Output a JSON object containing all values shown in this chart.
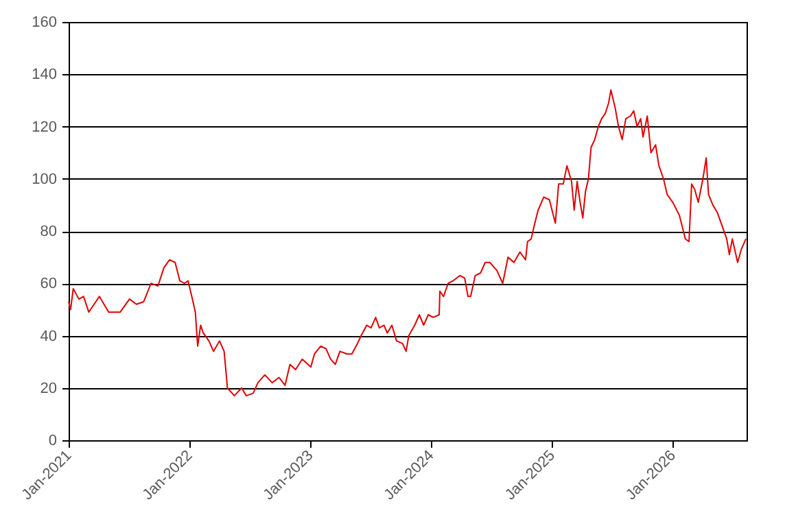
{
  "chart_data": {
    "type": "line",
    "x": [
      "2021-01-01",
      "2021-01-07",
      "2021-01-15",
      "2021-02-01",
      "2021-02-15",
      "2021-03-03",
      "2021-04-04",
      "2021-05-02",
      "2021-06-06",
      "2021-07-04",
      "2021-07-25",
      "2021-08-16",
      "2021-09-07",
      "2021-09-28",
      "2021-10-16",
      "2021-11-02",
      "2021-11-19",
      "2021-12-03",
      "2021-12-17",
      "2021-12-28",
      "2022-01-12",
      "2022-01-19",
      "2022-01-26",
      "2022-02-04",
      "2022-02-12",
      "2022-03-01",
      "2022-03-15",
      "2022-04-02",
      "2022-04-16",
      "2022-04-26",
      "2022-05-17",
      "2022-06-08",
      "2022-06-22",
      "2022-07-13",
      "2022-07-27",
      "2022-08-17",
      "2022-09-08",
      "2022-09-29",
      "2022-10-17",
      "2022-11-01",
      "2022-11-18",
      "2022-12-08",
      "2023-01-03",
      "2023-01-14",
      "2023-02-02",
      "2023-02-18",
      "2023-03-04",
      "2023-03-18",
      "2023-04-01",
      "2023-04-23",
      "2023-05-07",
      "2023-05-24",
      "2023-06-04",
      "2023-06-21",
      "2023-07-04",
      "2023-07-18",
      "2023-07-29",
      "2023-08-12",
      "2023-08-22",
      "2023-09-05",
      "2023-09-19",
      "2023-10-07",
      "2023-10-18",
      "2023-10-26",
      "2023-11-13",
      "2023-11-27",
      "2023-12-10",
      "2023-12-24",
      "2024-01-08",
      "2024-01-26",
      "2024-01-28",
      "2024-02-08",
      "2024-02-22",
      "2024-03-08",
      "2024-03-29",
      "2024-04-12",
      "2024-04-22",
      "2024-04-30",
      "2024-05-14",
      "2024-05-30",
      "2024-06-13",
      "2024-06-27",
      "2024-07-18",
      "2024-08-05",
      "2024-08-21",
      "2024-09-08",
      "2024-09-26",
      "2024-10-13",
      "2024-10-19",
      "2024-10-30",
      "2024-11-10",
      "2024-11-20",
      "2024-12-07",
      "2024-12-24",
      "2025-01-11",
      "2025-01-21",
      "2025-02-04",
      "2025-02-15",
      "2025-03-01",
      "2025-03-09",
      "2025-03-18",
      "2025-03-27",
      "2025-04-04",
      "2025-04-12",
      "2025-04-21",
      "2025-04-29",
      "2025-05-10",
      "2025-05-21",
      "2025-05-31",
      "2025-06-11",
      "2025-06-21",
      "2025-06-28",
      "2025-07-11",
      "2025-07-21",
      "2025-08-01",
      "2025-08-12",
      "2025-08-26",
      "2025-09-05",
      "2025-09-15",
      "2025-09-26",
      "2025-10-03",
      "2025-10-16",
      "2025-10-27",
      "2025-11-10",
      "2025-11-20",
      "2025-12-04",
      "2025-12-15",
      "2026-01-01",
      "2026-01-21",
      "2026-02-08",
      "2026-02-19",
      "2026-02-27",
      "2026-03-08",
      "2026-03-19",
      "2026-04-02",
      "2026-04-12",
      "2026-04-19",
      "2026-05-02",
      "2026-05-16",
      "2026-05-30",
      "2026-06-13",
      "2026-06-21",
      "2026-06-30",
      "2026-07-16",
      "2026-07-27",
      "2026-08-10"
    ],
    "series": [
      {
        "color": "#e00000",
        "values": [
          53,
          50,
          58,
          54,
          55,
          49,
          55,
          49,
          49,
          54,
          52,
          53,
          60,
          59,
          66,
          69,
          68,
          61,
          60,
          61,
          53,
          49,
          36,
          44,
          41,
          38,
          34,
          38,
          34,
          20,
          17,
          20,
          17,
          18,
          22,
          25,
          22,
          24,
          21,
          29,
          27,
          31,
          28,
          33,
          36,
          35,
          31,
          29,
          34,
          33,
          33,
          37,
          40,
          44,
          43,
          47,
          43,
          44,
          41,
          44,
          38,
          37,
          34,
          40,
          44,
          48,
          44,
          48,
          47,
          48,
          57,
          55,
          60,
          61,
          63,
          62,
          55,
          55,
          63,
          64,
          68,
          68,
          65,
          60,
          70,
          68,
          72,
          69,
          76,
          77,
          83,
          88,
          93,
          92,
          83,
          98,
          98,
          105,
          99,
          88,
          99,
          91,
          85,
          95,
          100,
          112,
          115,
          120,
          123,
          125,
          129,
          134,
          127,
          120,
          115,
          123,
          124,
          126,
          120,
          123,
          116,
          124,
          110,
          113,
          105,
          100,
          94,
          91,
          86,
          77,
          76,
          98,
          96,
          91,
          100,
          108,
          94,
          90,
          87,
          82,
          77,
          71,
          77,
          68,
          73,
          77
        ]
      }
    ],
    "xlim": [
      "2021-01-01",
      "2026-08-12"
    ],
    "xticks": [
      {
        "value": "2021-01",
        "label": "Jan-2021"
      },
      {
        "value": "2022-01",
        "label": "Jan-2022"
      },
      {
        "value": "2023-01",
        "label": "Jan-2023"
      },
      {
        "value": "2024-01",
        "label": "Jan-2024"
      },
      {
        "value": "2025-01",
        "label": "Jan-2025"
      },
      {
        "value": "2026-01",
        "label": "Jan-2026"
      }
    ],
    "ylim": [
      0,
      160
    ],
    "yticks": [
      0,
      20,
      40,
      60,
      80,
      100,
      120,
      140,
      160
    ],
    "grid": "y",
    "marker": "none",
    "line_style": "solid"
  }
}
